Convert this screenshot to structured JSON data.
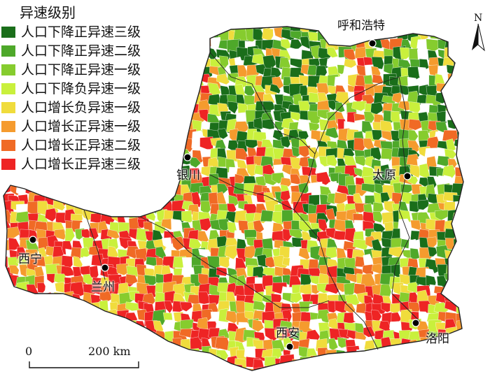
{
  "legend": {
    "title": "异速级别",
    "items": [
      {
        "label": "人口下降正异速三级",
        "color": "#1a6e1a"
      },
      {
        "label": "人口下降正异速二级",
        "color": "#4ea82a"
      },
      {
        "label": "人口下降正异速一级",
        "color": "#86cc2e"
      },
      {
        "label": "人口下降负异速一级",
        "color": "#c9f03c"
      },
      {
        "label": "人口增长负异速一级",
        "color": "#f0dc3c"
      },
      {
        "label": "人口增长正异速一级",
        "color": "#f59b2e"
      },
      {
        "label": "人口增长正异速二级",
        "color": "#f06a25"
      },
      {
        "label": "人口增长正异速三级",
        "color": "#ee2424"
      }
    ]
  },
  "cities": [
    {
      "name": "呼和浩特"
    },
    {
      "name": "银川"
    },
    {
      "name": "太原"
    },
    {
      "name": "西宁"
    },
    {
      "name": "兰州"
    },
    {
      "name": "西安"
    },
    {
      "name": "洛阳"
    }
  ],
  "north_arrow": {
    "letter": "N"
  },
  "scale": {
    "start": "0",
    "end": "200 km"
  }
}
